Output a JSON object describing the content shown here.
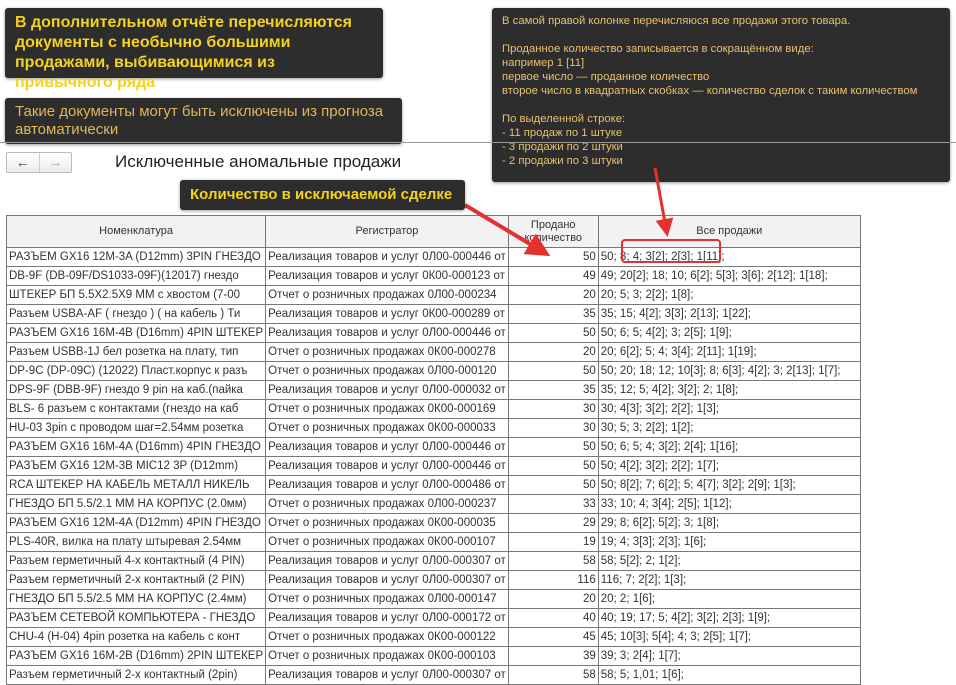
{
  "callouts": {
    "main": "В дополнительном отчёте перечисляются документы с необычно большими продажами, выбивающимися из привычного ряда",
    "exclude": "Такие документы могут быть исключены из прогноза автоматически",
    "right": [
      "В самой правой колонке перечисляюся все продажи этого товара.",
      "",
      "Проданное количество записывается в сокращённом виде:",
      "например 1 [11]",
      "первое число —  проданное количество",
      "второе число в квадратных скобках — количество сделок с таким количеством",
      "",
      "По выделенной строке:",
      "- 11 продаж по 1 штуке",
      "- 3 продажи по 2 штуки",
      "- 2 продажи по 3 штуки"
    ],
    "qty": "Количество в исключаемой сделке"
  },
  "nav": {
    "back_icon": "←",
    "forward_icon": "→"
  },
  "title": "Исключенные аномальные продажи",
  "accent": "#e53030",
  "table": {
    "headers": [
      "Номенклатура",
      "Регистратор",
      "Продано количество",
      "Все продажи"
    ],
    "rows": [
      [
        "РАЗЪЕМ GX16 12M-3A (D12mm) 3PIN ГНЕЗДО",
        "Реализация товаров и услуг 0Л00-000446 от",
        "50",
        "50; 8; 4; 3[2]; 2[3]; 1[11];"
      ],
      [
        "DB-9F (DB-09F/DS1033-09F)(12017) гнездо",
        "Реализация товаров и услуг 0К00-000123 от",
        "49",
        "49; 20[2]; 18; 10; 6[2]; 5[3]; 3[6]; 2[12]; 1[18];"
      ],
      [
        "ШТЕКЕР БП 5.5X2.5X9 ММ с хвостом (7-00",
        "Отчет о розничных продажах 0Л00-000234",
        "20",
        "20; 5; 3; 2[2]; 1[8];"
      ],
      [
        "Разъем USBA-AF ( гнездо ) ( на кабель ) Ти",
        "Реализация товаров и услуг 0К00-000289 от",
        "35",
        "35; 15; 4[2]; 3[3]; 2[13]; 1[22];"
      ],
      [
        "РАЗЪЕМ GX16 16M-4B (D16mm) 4PIN ШТЕКЕР",
        "Реализация товаров и услуг 0Л00-000446 от",
        "50",
        "50; 6; 5; 4[2]; 3; 2[5]; 1[9];"
      ],
      [
        "Разъем USBB-1J бел розетка на плату, тип",
        "Отчет о розничных продажах 0К00-000278",
        "20",
        "20; 6[2]; 5; 4; 3[4]; 2[11]; 1[19];"
      ],
      [
        "DP-9C (DP-09C) (12022) Пласт.корпус к разъ",
        "Отчет о розничных продажах 0Л00-000120",
        "50",
        "50; 20; 18; 12; 10[3]; 8; 6[3]; 4[2]; 3; 2[13]; 1[7];"
      ],
      [
        "DPS-9F (DBB-9F) гнездо 9 pin на каб.(пайка",
        "Реализация товаров и услуг 0Л00-000032 от",
        "35",
        "35; 12; 5; 4[2]; 3[2]; 2; 1[8];"
      ],
      [
        "BLS- 6 разъем с контактами (гнездо на каб",
        "Отчет о розничных продажах 0К00-000169",
        "30",
        "30; 4[3]; 3[2]; 2[2]; 1[3];"
      ],
      [
        "HU-03 3pin с проводом шаг=2.54мм розетка",
        "Отчет о розничных продажах 0К00-000033",
        "30",
        "30; 5; 3; 2[2]; 1[2];"
      ],
      [
        "РАЗЪЕМ GX16 16M-4A (D16mm) 4PIN ГНЕЗДО",
        "Реализация товаров и услуг 0Л00-000446 от",
        "50",
        "50; 6; 5; 4; 3[2]; 2[4]; 1[16];"
      ],
      [
        "РАЗЪЕМ GX16 12M-3B   MIC12 3P (D12mm)",
        "Реализация товаров и услуг 0Л00-000446 от",
        "50",
        "50; 4[2]; 3[2]; 2[2]; 1[7];"
      ],
      [
        "RCA ШТЕКЕР НА КАБЕЛЬ МЕТАЛЛ НИКЕЛЬ",
        "Реализация товаров и услуг 0Л00-000486 от",
        "50",
        "50; 8[2]; 7; 6[2]; 5; 4[7]; 3[2]; 2[9]; 1[3];"
      ],
      [
        "ГНЕЗДО БП 5.5/2.1 ММ НА КОРПУС (2.0мм)",
        "Отчет о розничных продажах 0Л00-000237",
        "33",
        "33; 10; 4; 3[4]; 2[5]; 1[12];"
      ],
      [
        "РАЗЪЕМ GX16 12M-4A (D12mm) 4PIN ГНЕЗДО",
        "Отчет о розничных продажах 0К00-000035",
        "29",
        "29; 8; 6[2]; 5[2]; 3; 1[8];"
      ],
      [
        "PLS-40R, вилка на плату штыревая 2.54мм",
        "Отчет о розничных продажах 0К00-000107",
        "19",
        "19; 4; 3[3]; 2[3]; 1[6];"
      ],
      [
        "Разъем герметичный 4-х контактный (4 PIN)",
        "Реализация товаров и услуг 0Л00-000307 от",
        "58",
        "58; 5[2]; 2; 1[2];"
      ],
      [
        "Разъем герметичный 2-х контактный (2 PIN)",
        "Реализация товаров и услуг 0Л00-000307 от",
        "116",
        "116; 7; 2[2]; 1[3];"
      ],
      [
        "ГНЕЗДО БП 5.5/2.5 ММ НА КОРПУС (2.4мм)",
        "Отчет о розничных продажах 0Л00-000147",
        "20",
        "20; 2; 1[6];"
      ],
      [
        "РАЗЪЕМ СЕТЕВОЙ КОМПЬЮТЕРА - ГНЕЗДО",
        "Реализация товаров и услуг 0Л00-000172 от",
        "40",
        "40; 19; 17; 5; 4[2]; 3[2]; 2[3]; 1[9];"
      ],
      [
        "CHU-4 (H-04) 4pin розетка на кабель с конт",
        "Отчет о розничных продажах 0К00-000122",
        "45",
        "45; 10[3]; 5[4]; 4; 3; 2[5]; 1[7];"
      ],
      [
        "РАЗЪЕМ GX16 16M-2B (D16mm) 2PIN ШТЕКЕР",
        "Отчет о розничных продажах 0К00-000103",
        "39",
        "39; 3; 2[4]; 1[7];"
      ],
      [
        "Разъем герметичный 2-х контактный (2pin)",
        "Реализация товаров и услуг 0Л00-000307 от",
        "58",
        "58; 5; 1,01; 1[6];"
      ]
    ]
  }
}
